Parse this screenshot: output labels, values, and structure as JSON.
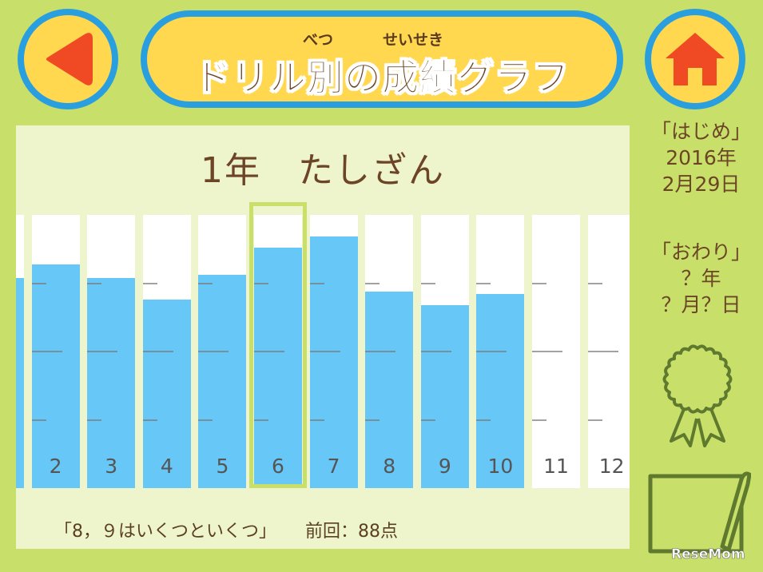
{
  "header": {
    "title": "ドリル別の成績グラフ",
    "ruby_betsu": "べつ",
    "ruby_seiseki": "せいせき",
    "back_icon": "back-arrow-icon",
    "home_icon": "home-icon"
  },
  "panel": {
    "drill_title": "1年　たしざん",
    "selected_index": 6,
    "bars": [
      {
        "label": "",
        "fill": 0.77
      },
      {
        "label": "2",
        "fill": 0.82
      },
      {
        "label": "3",
        "fill": 0.77
      },
      {
        "label": "4",
        "fill": 0.69
      },
      {
        "label": "5",
        "fill": 0.78
      },
      {
        "label": "6",
        "fill": 0.88
      },
      {
        "label": "7",
        "fill": 0.92
      },
      {
        "label": "8",
        "fill": 0.72
      },
      {
        "label": "9",
        "fill": 0.67
      },
      {
        "label": "10",
        "fill": 0.71
      },
      {
        "label": "11",
        "fill": 0
      },
      {
        "label": "12",
        "fill": 0
      }
    ],
    "footer_question": "「8，９はいくつといくつ」",
    "footer_prev": "前回：88点"
  },
  "sidebar": {
    "start_label": "「はじめ」",
    "start_year": "2016年",
    "start_date": "2月29日",
    "end_label": "「おわり」",
    "end_year": "？年",
    "end_date": "？月？日",
    "award_icon": "rosette-award-icon",
    "note_icon": "notepad-pencil-icon"
  },
  "watermark": "ReseMom",
  "colors": {
    "background": "#c8e06a",
    "button_fill": "#ffd84f",
    "button_border": "#2a9fe0",
    "bar_fill": "#67c7f6",
    "back_arrow": "#f04a25",
    "text_brown": "#6b4526",
    "icon_olive": "#5f7a2e"
  }
}
